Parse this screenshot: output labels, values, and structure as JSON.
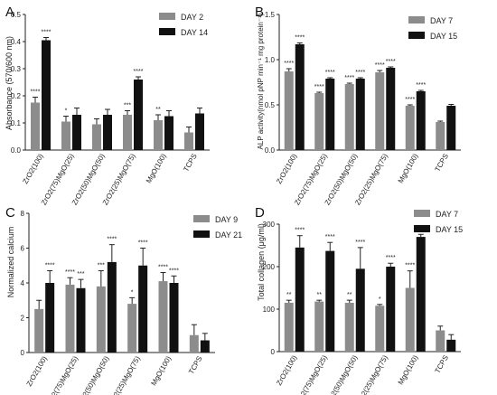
{
  "colors": {
    "early": "#8c8c8c",
    "late": "#111111",
    "axis": "#222222"
  },
  "chart_data": [
    {
      "panel_label": "A",
      "type": "bar",
      "categories": [
        "ZrO2(100)",
        "ZrO2(75)MgO(25)",
        "ZrO2(50)MgO(50)",
        "ZrO2(25)MgO(75)",
        "MgO(100)",
        "TCPS"
      ],
      "ylabel": "Absorbance (570/600 nm)",
      "ylim": [
        0,
        0.5
      ],
      "yticks": [
        "0.0",
        "0.1",
        "0.2",
        "0.3",
        "0.4",
        "0.5"
      ],
      "legend_position": "top-right",
      "series": [
        {
          "name": "DAY 2",
          "values": [
            0.175,
            0.105,
            0.095,
            0.13,
            0.11,
            0.065
          ],
          "errors": [
            0.02,
            0.02,
            0.02,
            0.015,
            0.02,
            0.02
          ],
          "stars": [
            "****",
            "*",
            "",
            "***",
            "**",
            ""
          ]
        },
        {
          "name": "DAY 14",
          "values": [
            0.405,
            0.13,
            0.13,
            0.26,
            0.125,
            0.135
          ],
          "errors": [
            0.01,
            0.025,
            0.02,
            0.01,
            0.02,
            0.02
          ],
          "stars": [
            "****",
            "",
            "",
            "****",
            "",
            ""
          ]
        }
      ]
    },
    {
      "panel_label": "B",
      "type": "bar",
      "categories": [
        "ZrO2(100)",
        "ZrO2(75)MgO(25)",
        "ZrO2(50)MgO(50)",
        "ZrO2(25)MgO(75)",
        "MgO(100)",
        "TCPS"
      ],
      "ylabel": "ALP activity(nmol pNP min⁻¹ mg protein⁻¹)",
      "ylim": [
        0,
        1.5
      ],
      "yticks": [
        "0.0",
        "0.5",
        "1.0",
        "1.5"
      ],
      "legend_position": "top-right",
      "series": [
        {
          "name": "DAY 7",
          "values": [
            0.87,
            0.63,
            0.73,
            0.86,
            0.49,
            0.31
          ],
          "errors": [
            0.03,
            0.01,
            0.01,
            0.02,
            0.01,
            0.01
          ],
          "stars": [
            "****",
            "****",
            "****",
            "****",
            "****",
            ""
          ]
        },
        {
          "name": "DAY 15",
          "values": [
            1.17,
            0.79,
            0.79,
            0.91,
            0.65,
            0.49
          ],
          "errors": [
            0.015,
            0.01,
            0.01,
            0.01,
            0.01,
            0.015
          ],
          "stars": [
            "****",
            "****",
            "****",
            "****",
            "****",
            ""
          ]
        }
      ]
    },
    {
      "panel_label": "C",
      "type": "bar",
      "categories": [
        "ZrO2(100)",
        "ZrO2(75)MgO(25)",
        "ZrO2(50)MgO(50)",
        "ZrO2(25)MgO(75)",
        "MgO(100)",
        "TCPS"
      ],
      "ylabel": "Normalized calcium",
      "ylim": [
        0,
        8
      ],
      "yticks": [
        "0",
        "2",
        "4",
        "6",
        "8"
      ],
      "legend_position": "top-right",
      "series": [
        {
          "name": "DAY 9",
          "values": [
            2.5,
            3.9,
            3.8,
            2.8,
            4.1,
            1.0
          ],
          "errors": [
            0.5,
            0.4,
            0.9,
            0.35,
            0.5,
            0.6
          ],
          "stars": [
            "",
            "****",
            "***",
            "*",
            "****",
            ""
          ]
        },
        {
          "name": "DAY 21",
          "values": [
            4.0,
            3.7,
            5.2,
            5.0,
            4.0,
            0.7
          ],
          "errors": [
            0.7,
            0.5,
            1.0,
            1.0,
            0.4,
            0.4
          ],
          "stars": [
            "****",
            "***",
            "****",
            "****",
            "****",
            ""
          ]
        }
      ]
    },
    {
      "panel_label": "D",
      "type": "bar",
      "categories": [
        "ZrO2(100)",
        "ZrO2(75)MgO(25)",
        "ZrO2(50)MgO(50)",
        "ZrO2(25)MgO(75)",
        "MgO(100)",
        "TCPS"
      ],
      "ylabel": "Total collagen (μg/ml)",
      "ylim": [
        0,
        300
      ],
      "yticks": [
        "0",
        "100",
        "200",
        "300"
      ],
      "legend_position": "top-right",
      "series": [
        {
          "name": "DAY 7",
          "values": [
            115,
            118,
            115,
            108,
            150,
            50
          ],
          "errors": [
            6,
            3,
            6,
            3,
            40,
            10
          ],
          "stars": [
            "**",
            "**",
            "**",
            "*",
            "****",
            ""
          ]
        },
        {
          "name": "DAY 15",
          "values": [
            245,
            237,
            195,
            200,
            270,
            28
          ],
          "errors": [
            28,
            20,
            50,
            8,
            6,
            12
          ],
          "stars": [
            "****",
            "****",
            "****",
            "****",
            "****",
            ""
          ]
        }
      ]
    }
  ]
}
